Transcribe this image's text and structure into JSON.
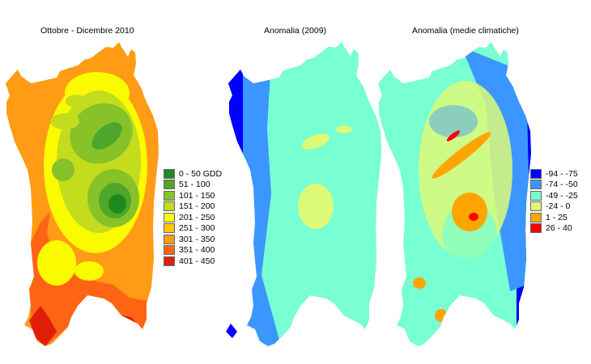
{
  "titles": {
    "panel1": "Ottobre - Dicembre 2010",
    "panel2": "Anomalia (2009)",
    "panel3": "Anomalia (medie climatiche)"
  },
  "legend1": {
    "items": [
      {
        "label": "0 - 50 GDD",
        "color": "#1e8a1e"
      },
      {
        "label": "51 - 100",
        "color": "#4ea62a"
      },
      {
        "label": "101 - 150",
        "color": "#86c228"
      },
      {
        "label": "151 - 200",
        "color": "#c4dc1e"
      },
      {
        "label": "201 - 250",
        "color": "#fafa00"
      },
      {
        "label": "251 - 300",
        "color": "#ffc800"
      },
      {
        "label": "301 - 350",
        "color": "#ff9b14"
      },
      {
        "label": "351 - 400",
        "color": "#ff6414"
      },
      {
        "label": "401 - 450",
        "color": "#e01e0a"
      }
    ]
  },
  "legend2": {
    "items": [
      {
        "label": "-94 - -75",
        "color": "#0000ff"
      },
      {
        "label": "-74 - -50",
        "color": "#3c96ff"
      },
      {
        "label": "-49 - -25",
        "color": "#78ffd2"
      },
      {
        "label": "-24 - 0",
        "color": "#dcfa78"
      },
      {
        "label": "1 - 25",
        "color": "#ffa500"
      },
      {
        "label": "26 - 40",
        "color": "#ff0000"
      }
    ]
  }
}
